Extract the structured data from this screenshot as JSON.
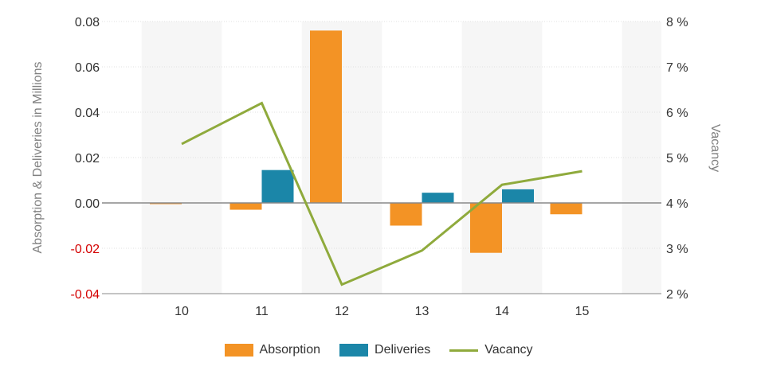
{
  "chart_data": {
    "type": "bar",
    "categories": [
      "10",
      "11",
      "12",
      "13",
      "14",
      "15"
    ],
    "series": [
      {
        "name": "Absorption",
        "kind": "bar",
        "axis": "left",
        "color": "#f39325",
        "values": [
          -0.0005,
          -0.003,
          0.076,
          -0.01,
          -0.022,
          -0.005
        ]
      },
      {
        "name": "Deliveries",
        "kind": "bar",
        "axis": "left",
        "color": "#1b86a8",
        "values": [
          null,
          0.0145,
          null,
          0.0045,
          0.006,
          null
        ]
      },
      {
        "name": "Vacancy",
        "kind": "line",
        "axis": "right",
        "color": "#8faa3c",
        "values": [
          5.3,
          6.2,
          2.2,
          2.95,
          4.4,
          4.7
        ]
      }
    ],
    "ylabel": "Absorption & Deliveries in Millions",
    "y2label": "Vacancy",
    "ylim": [
      -0.04,
      0.08
    ],
    "y2lim": [
      2,
      8
    ],
    "yticks": [
      "0.08",
      "0.06",
      "0.04",
      "0.02",
      "0.00",
      "-0.02",
      "-0.04"
    ],
    "y2ticks": [
      "8 %",
      "7 %",
      "6 %",
      "5 %",
      "4 %",
      "3 %",
      "2 %"
    ],
    "legend_position": "bottom-center",
    "alternating_bands": true,
    "negative_tick_color": "#d40000"
  },
  "legend": [
    {
      "label": "Absorption",
      "color": "#f39325",
      "shape": "box"
    },
    {
      "label": "Deliveries",
      "color": "#1b86a8",
      "shape": "box"
    },
    {
      "label": "Vacancy",
      "color": "#8faa3c",
      "shape": "line"
    }
  ]
}
